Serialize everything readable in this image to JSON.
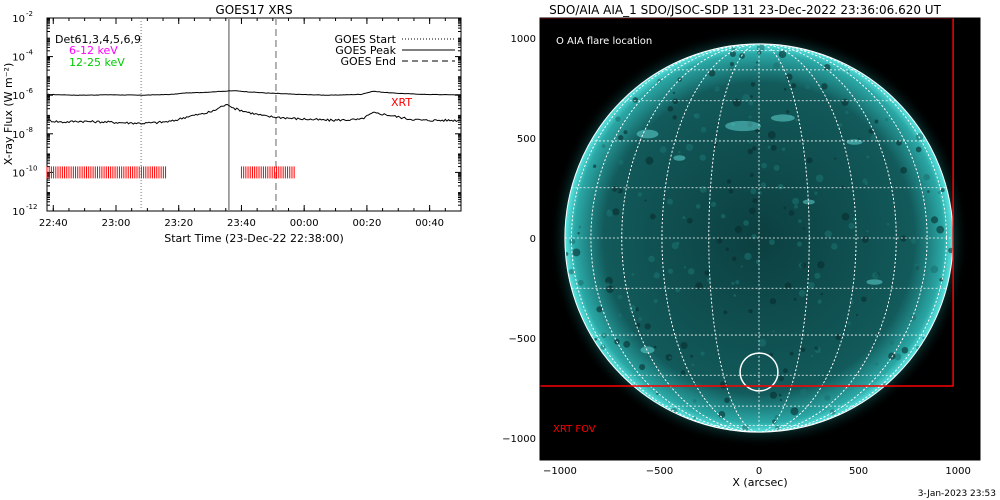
{
  "goes": {
    "title": "GOES17 XRS",
    "det_label": "Det61,3,4,5,6,9",
    "band_low_label": "6-12 keV",
    "band_high_label": "12-25 keV",
    "legend": [
      "GOES Start",
      "GOES Peak",
      "GOES End"
    ],
    "xrt_label": "XRT",
    "xlabel": "Start Time (23-Dec-22 22:38:00)",
    "ylabel": "X-ray Flux (W m⁻²)",
    "colors": {
      "band_low": "#ff00ff",
      "band_high": "#00cc00",
      "xrt": "#ff0000"
    }
  },
  "aia": {
    "title": "SDO/AIA AIA_1 SDO/JSOC-SDP 131 23-Dec-2022 23:36:06.620 UT",
    "flare_label": "O AIA flare location",
    "fov_label": "XRT FOV",
    "xlabel": "X (arcsec)",
    "colors": {
      "disk": "#0e4a4a",
      "limb": "#3ad2cf",
      "fov": "#ff0000",
      "grid": "#ffffff"
    }
  },
  "footer": {
    "timestamp": "3-Jan-2023 23:53"
  },
  "chart_data": [
    {
      "type": "line",
      "title": "GOES17 XRS",
      "xlabel": "Start Time (23-Dec-22 22:38:00)",
      "ylabel": "X-ray Flux (W m⁻²)",
      "yscale": "log",
      "x_tick_labels": [
        "22:40",
        "23:00",
        "23:20",
        "23:40",
        "00:00",
        "00:20",
        "00:40"
      ],
      "x_tick_minutes": [
        2,
        22,
        42,
        62,
        82,
        102,
        122
      ],
      "xlim_minutes": [
        0,
        132
      ],
      "y_tick_exponents": [
        -12,
        -10,
        -8,
        -6,
        -4,
        -2
      ],
      "ylim": [
        1e-12,
        0.01
      ],
      "markers": {
        "goes_start_min": 30,
        "goes_peak_min": 58,
        "goes_end_min": 73
      },
      "series": [
        {
          "name": "6-12 keV",
          "x_minutes": [
            0,
            10,
            20,
            30,
            40,
            44,
            50,
            56,
            60,
            64,
            70,
            80,
            90,
            100,
            104,
            110,
            120,
            132
          ],
          "y": [
            1.1e-06,
            1e-06,
            1.05e-06,
            1e-06,
            1.1e-06,
            1.3e-06,
            1.4e-06,
            1.6e-06,
            1.7e-06,
            1.5e-06,
            1.3e-06,
            1.1e-06,
            1e-06,
            1.1e-06,
            1.6e-06,
            1.3e-06,
            1.1e-06,
            1.05e-06
          ]
        },
        {
          "name": "12-25 keV",
          "x_minutes": [
            0,
            5,
            10,
            20,
            30,
            35,
            40,
            45,
            50,
            53,
            56,
            58,
            60,
            65,
            70,
            80,
            90,
            100,
            104,
            108,
            115,
            120,
            132
          ],
          "y": [
            5e-08,
            4e-08,
            4.5e-08,
            4e-08,
            3.5e-08,
            3.8e-08,
            4.5e-08,
            8e-08,
            1.1e-07,
            1.5e-07,
            2.8e-07,
            3.2e-07,
            2e-07,
            1.2e-07,
            8e-08,
            6e-08,
            5e-08,
            5.5e-08,
            1.2e-07,
            1e-07,
            6e-08,
            5e-08,
            5e-08
          ]
        }
      ],
      "xrt_coverage_minutes": [
        [
          0,
          38
        ],
        [
          62,
          79
        ]
      ],
      "xrt_level": 1e-10
    },
    {
      "type": "scatter",
      "title": "SDO/AIA AIA_1 SDO/JSOC-SDP 131 23-Dec-2022 23:36:06.620 UT",
      "xlabel": "X (arcsec)",
      "x_ticks": [
        -1000,
        -500,
        0,
        500,
        1000
      ],
      "y_ticks": [
        -1000,
        -500,
        0,
        500,
        1000
      ],
      "xlim": [
        -1100,
        1110
      ],
      "ylim": [
        -1110,
        1100
      ],
      "solar_radius_arcsec": 975,
      "flare_location": {
        "x": 0,
        "y": -670,
        "radius": 95
      },
      "xrt_fov": {
        "x_min": -1110,
        "x_max": 975,
        "y_min": -740,
        "y_max": 1100
      }
    }
  ]
}
